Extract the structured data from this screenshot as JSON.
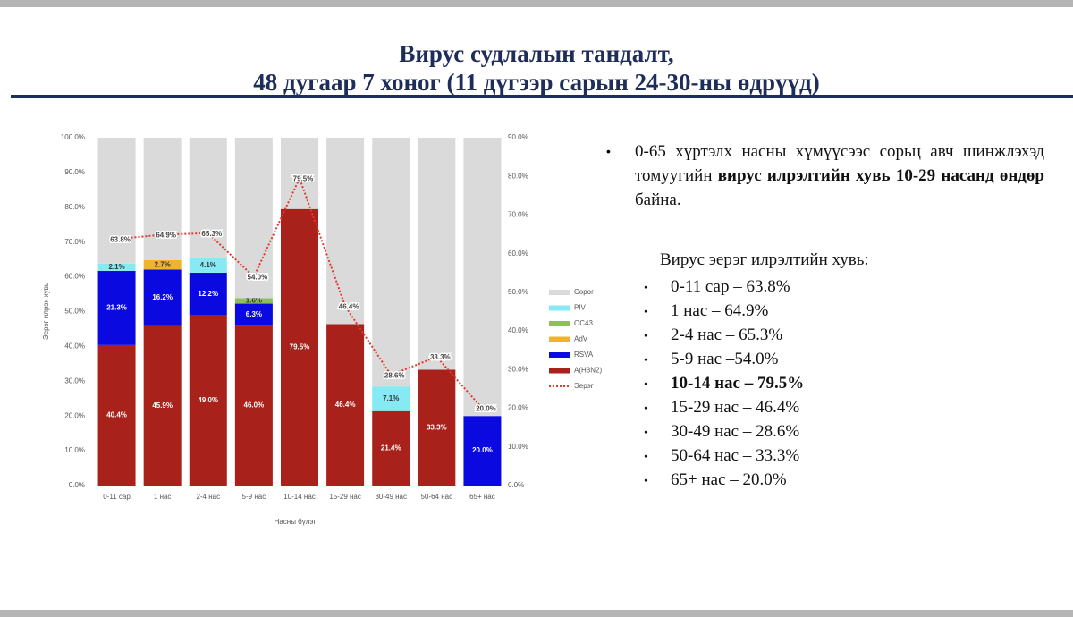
{
  "header": {
    "title_lines": [
      "Вирус судлалын тандалт,",
      "48 дугаар 7 хоног  (11 дүгээр сарын 24-30-ны өдрүүд)"
    ]
  },
  "chart_data": {
    "type": "stacked_bar",
    "x_label": "Насны бүлэг",
    "y_label": "Эерэг илрэх хувь",
    "categories": [
      "0-11 сар",
      "1 нас",
      "2-4 нас",
      "5-9 нас",
      "10-14 нас",
      "15-29 нас",
      "30-49 нас",
      "50-64 нас",
      "65+ нас"
    ],
    "ylim": [
      0,
      100
    ],
    "yticks": [
      {
        "value": 0,
        "label": "0.0%"
      },
      {
        "value": 10,
        "label": "10.0%"
      },
      {
        "value": 20,
        "label": "20.0%"
      },
      {
        "value": 30,
        "label": "30.0%"
      },
      {
        "value": 40,
        "label": "40.0%"
      },
      {
        "value": 50,
        "label": "50.0%"
      },
      {
        "value": 60,
        "label": "60.0%"
      },
      {
        "value": 70,
        "label": "70.0%"
      },
      {
        "value": 80,
        "label": "80.0%"
      },
      {
        "value": 90,
        "label": "90.0%"
      },
      {
        "value": 100,
        "label": "100.0%"
      }
    ],
    "y2lim": [
      0,
      90
    ],
    "y2ticks": [
      {
        "value": 0,
        "label": "0.0%"
      },
      {
        "value": 10,
        "label": "10.0%"
      },
      {
        "value": 20,
        "label": "20.0%"
      },
      {
        "value": 30,
        "label": "30.0%"
      },
      {
        "value": 40,
        "label": "40.0%"
      },
      {
        "value": 50,
        "label": "50.0%"
      },
      {
        "value": 60,
        "label": "60.0%"
      },
      {
        "value": 70,
        "label": "70.0%"
      },
      {
        "value": 80,
        "label": "80.0%"
      },
      {
        "value": 90,
        "label": "90.0%"
      }
    ],
    "series": [
      {
        "name": "A(H3N2)",
        "color": "#a8211a",
        "values": [
          40.4,
          45.9,
          49.0,
          46.0,
          79.5,
          46.4,
          21.4,
          33.3,
          null
        ],
        "value_labels": [
          "40.4%",
          "45.9%",
          "49.0%",
          "46.0%",
          "79.5%",
          "46.4%",
          "21.4%",
          "33.3%",
          null
        ]
      },
      {
        "name": "RSVA",
        "color": "#0a0ae0",
        "values": [
          21.3,
          16.2,
          12.2,
          6.3,
          null,
          null,
          null,
          null,
          20.0
        ],
        "value_labels": [
          "21.3%",
          "16.2%",
          "12.2%",
          "6.3%",
          null,
          null,
          null,
          null,
          "20.0%"
        ]
      },
      {
        "name": "AdV",
        "color": "#f0b428",
        "values": [
          null,
          2.7,
          null,
          null,
          null,
          null,
          null,
          null,
          null
        ],
        "value_labels": [
          null,
          "2.7%",
          null,
          null,
          null,
          null,
          null,
          null,
          null
        ]
      },
      {
        "name": "OC43",
        "color": "#8fbf5a",
        "values": [
          null,
          null,
          null,
          1.6,
          null,
          null,
          null,
          null,
          null
        ],
        "value_labels": [
          null,
          null,
          null,
          "1.6%",
          null,
          null,
          null,
          null,
          null
        ]
      },
      {
        "name": "PIV",
        "color": "#86eaf5",
        "values": [
          2.1,
          null,
          4.1,
          null,
          null,
          null,
          7.1,
          null,
          null
        ],
        "value_labels": [
          "2.1%",
          null,
          "4.1%",
          null,
          null,
          null,
          "7.1%",
          null,
          null
        ]
      },
      {
        "name": "Сөрөг",
        "color": "#dadada",
        "values": [
          36.2,
          35.2,
          34.7,
          46.1,
          20.5,
          53.6,
          71.5,
          66.7,
          80.0
        ]
      },
      {
        "name": "Эерэг",
        "color": "#e03a30",
        "type": "line",
        "axis": "y2",
        "values": [
          63.8,
          64.9,
          65.3,
          54.0,
          79.5,
          46.4,
          28.6,
          33.3,
          20.0
        ],
        "value_labels": [
          "63.8%",
          "64.9%",
          "65.3%",
          "54.0%",
          "79.5%",
          "46.4%",
          "28.6%",
          "33.3%",
          "20.0%"
        ]
      }
    ],
    "legend_order": [
      "Сөрөг",
      "PIV",
      "OC43",
      "AdV",
      "RSVA",
      "A(H3N2)",
      "Эерэг"
    ],
    "legend": "right"
  },
  "summary": {
    "parts": [
      "0-65 хүртэлх насны хүмүүсээс сорьц авч шинжлэхэд томуугийн ",
      "вирус илрэлтийн хувь 10-29 насанд өндөр",
      " байна."
    ]
  },
  "list": {
    "heading": "Вирус эерэг илрэлтийн хувь:",
    "items": [
      {
        "text": "0-11 сар – 63.8%"
      },
      {
        "text": "1 нас – 64.9%"
      },
      {
        "text": "2-4 нас – 65.3%"
      },
      {
        "text": "5-9 нас –54.0%"
      },
      {
        "text": "10-14 нас – 79.5%",
        "bold": true
      },
      {
        "text": "15-29 нас – 46.4%"
      },
      {
        "text": "30-49 нас – 28.6%"
      },
      {
        "text": "50-64 нас – 33.3%"
      },
      {
        "text": "65+ нас – 20.0%"
      }
    ]
  }
}
